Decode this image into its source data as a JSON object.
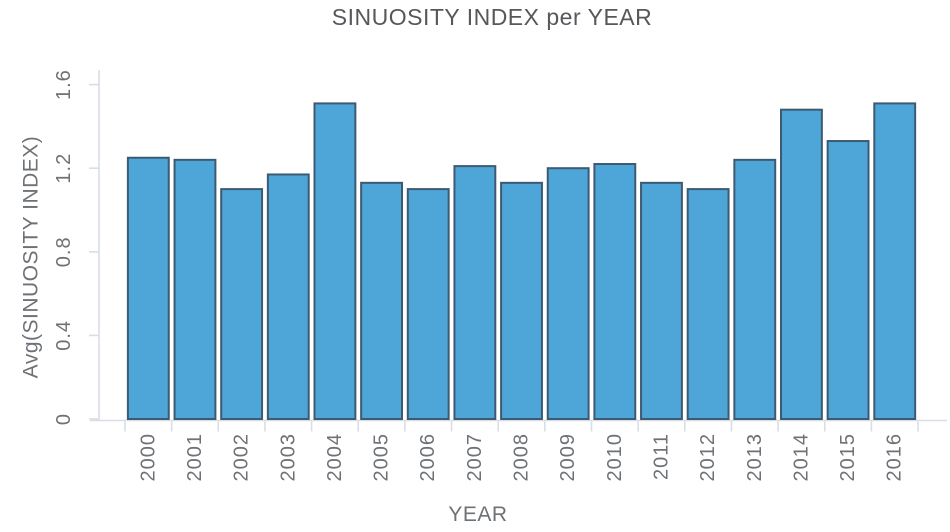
{
  "chart_data": {
    "type": "bar",
    "title": "SINUOSITY INDEX per YEAR",
    "xlabel": "YEAR",
    "ylabel": "Avg(SINUOSITY INDEX)",
    "categories": [
      "2000",
      "2001",
      "2002",
      "2003",
      "2004",
      "2005",
      "2006",
      "2007",
      "2008",
      "2009",
      "2010",
      "2011",
      "2012",
      "2013",
      "2014",
      "2015",
      "2016"
    ],
    "values": [
      1.25,
      1.24,
      1.1,
      1.17,
      1.51,
      1.13,
      1.1,
      1.21,
      1.13,
      1.2,
      1.22,
      1.13,
      1.1,
      1.24,
      1.48,
      1.33,
      1.51
    ],
    "yticks": [
      0,
      0.4,
      0.8,
      1.2,
      1.6
    ],
    "ylim": [
      0,
      1.67
    ],
    "grid": "off",
    "legend": "none",
    "tick_label_rotation_deg": -90,
    "colors": {
      "bar_fill": "#4EA5D8",
      "bar_stroke": "#3D5A73",
      "axis_line": "#D9DDE6",
      "tick_label": "#6E7276",
      "title_text": "#56585B"
    }
  }
}
